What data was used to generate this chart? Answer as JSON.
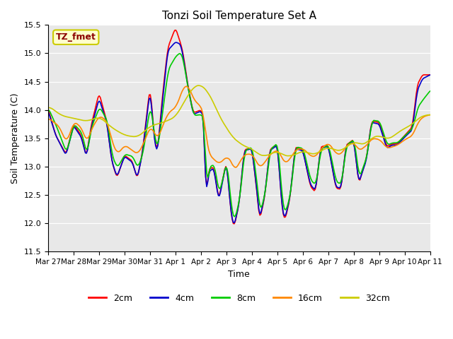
{
  "title": "Tonzi Soil Temperature Set A",
  "ylabel": "Soil Temperature (C)",
  "xlabel": "Time",
  "annotation": "TZ_fmet",
  "ylim": [
    11.5,
    15.5
  ],
  "bg_color": "#e8e8e8",
  "series_colors": {
    "2cm": "#ff0000",
    "4cm": "#0000cc",
    "8cm": "#00cc00",
    "16cm": "#ff8800",
    "32cm": "#cccc00"
  },
  "x_tick_labels": [
    "Mar 27",
    "Mar 28",
    "Mar 29",
    "Mar 30",
    "Mar 31",
    "Apr 1",
    "Apr 2",
    "Apr 3",
    "Apr 4",
    "Apr 5",
    "Apr 6",
    "Apr 7",
    "Apr 8",
    "Apr 9",
    "Apr 10",
    "Apr 11"
  ],
  "annotation_color": "#8B0000",
  "annotation_bg": "#ffffcc",
  "annotation_edge": "#cccc00"
}
